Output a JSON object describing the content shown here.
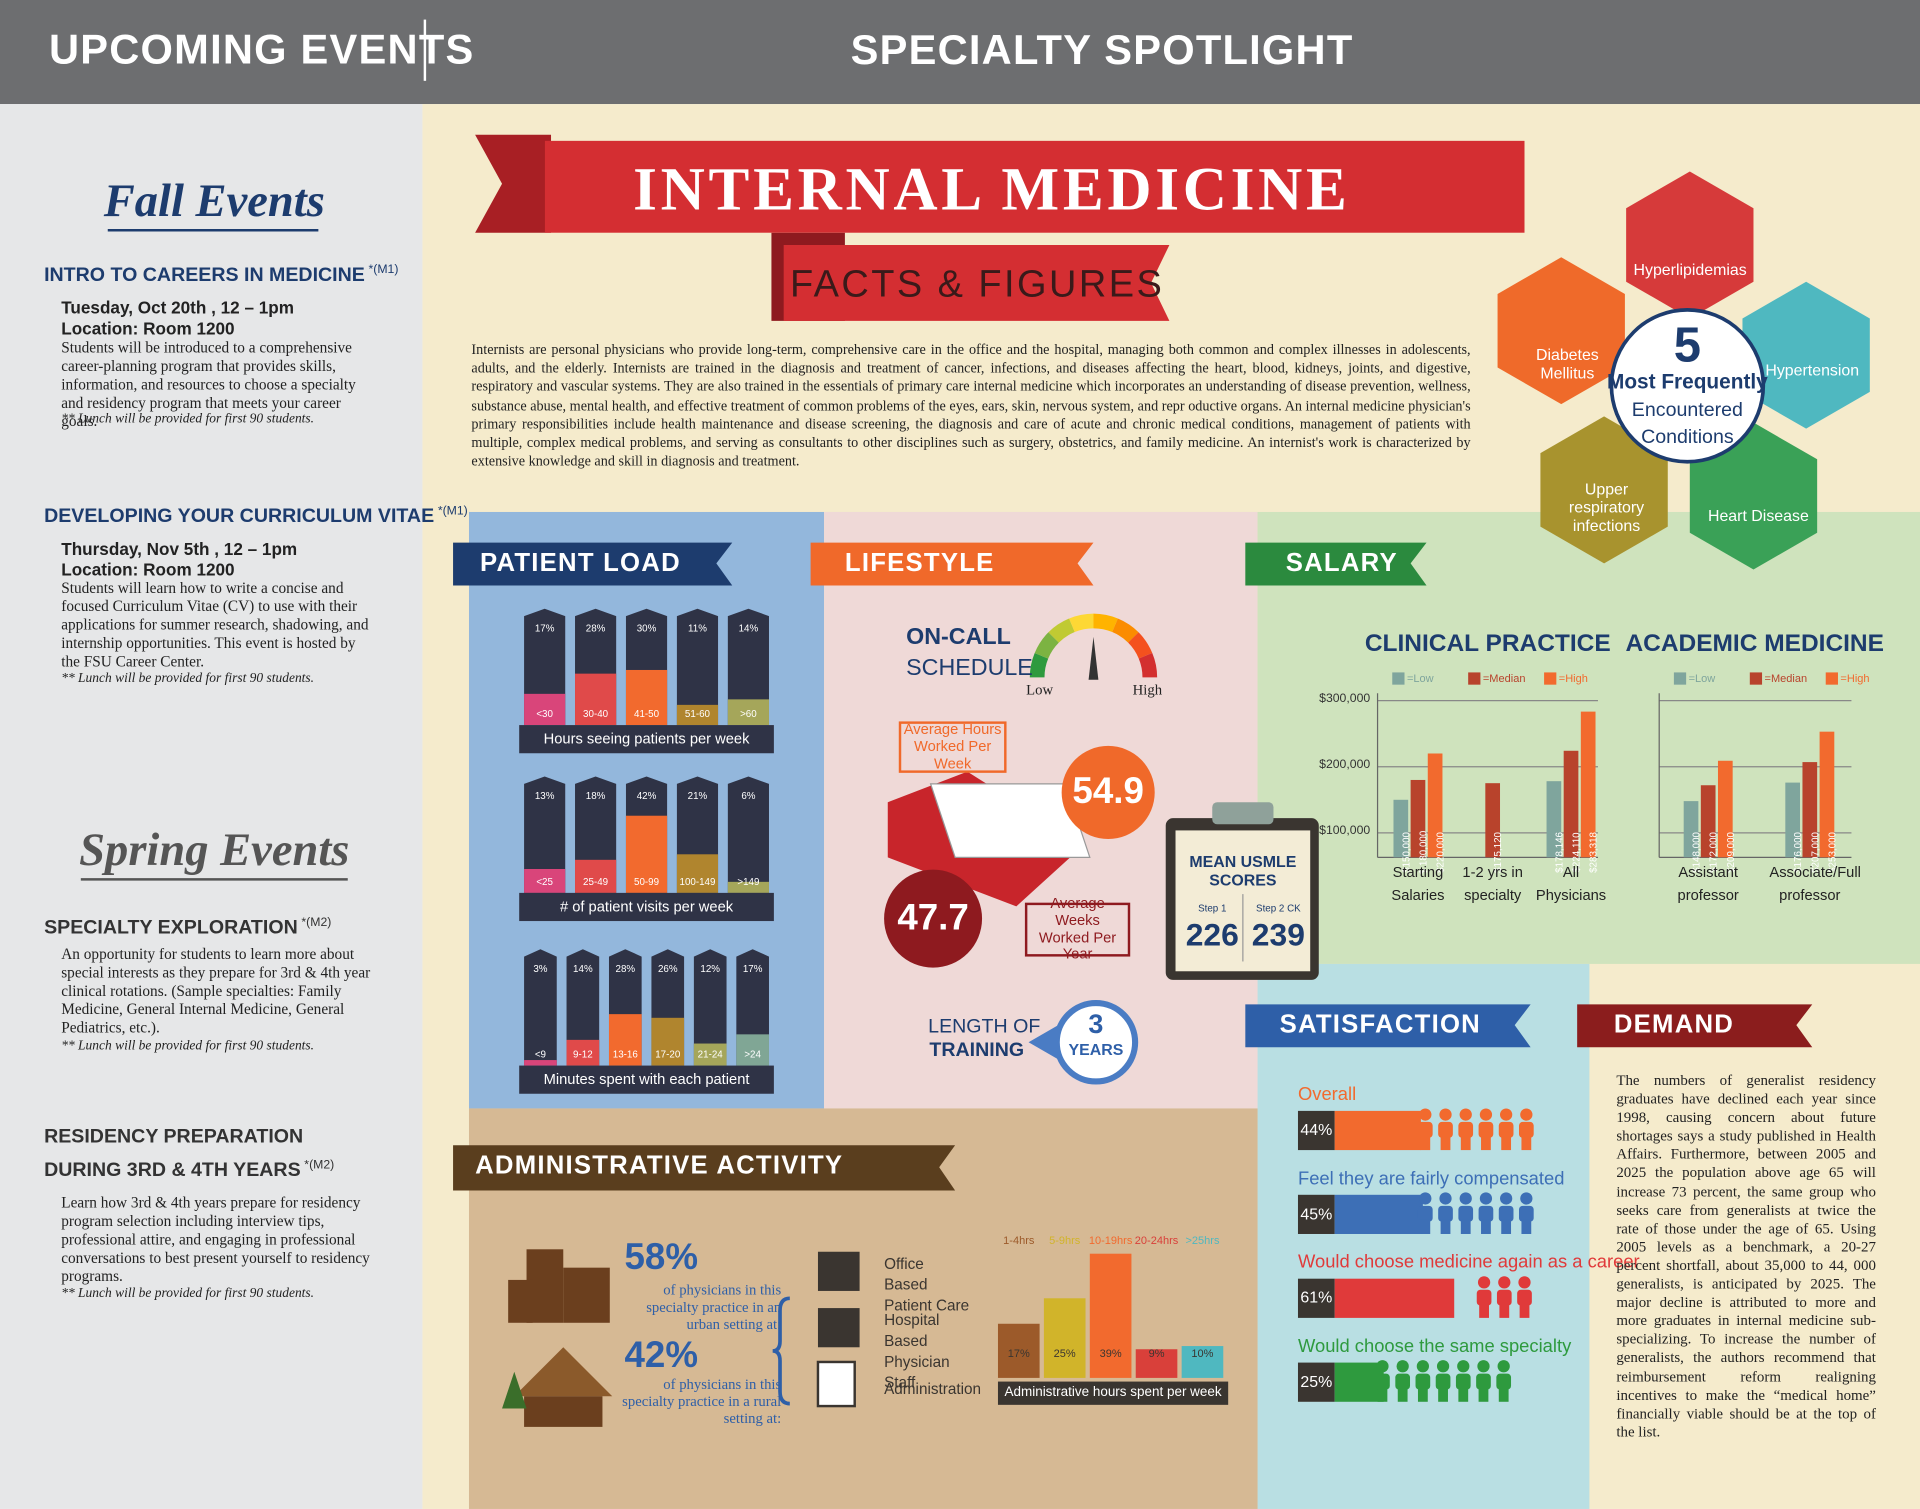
{
  "header": {
    "left": "UPCOMING EVENTS",
    "right": "SPECIALTY SPOTLIGHT"
  },
  "sidebar": {
    "fall_title": "Fall Events",
    "fall_events": [
      {
        "title": "INTRO TO CAREERS IN MEDICINE",
        "tag": "*(M1)",
        "date": "Tuesday, Oct 20th , 12 – 1pm",
        "location": "Location: Room 1200",
        "description": "Students will be introduced to a comprehensive career-planning program that provides skills, information, and resources to choose a specialty and residency program that meets your career goals.",
        "note": "** Lunch will be provided for first 90 students."
      },
      {
        "title": "DEVELOPING YOUR CURRICULUM VITAE",
        "tag": "*(M1)",
        "date": "Thursday, Nov 5th , 12 – 1pm",
        "location": "Location: Room 1200",
        "description": "Students will learn how to write a concise and focused Curriculum Vitae (CV) to use with their applications for summer research, shadowing, and internship opportunities. This event is hosted by the FSU Career Center.",
        "note": "** Lunch will be provided for first 90 students."
      }
    ],
    "spring_title": "Spring Events",
    "spring_events": [
      {
        "title_lines": [
          "SPECIALTY EXPLORATION"
        ],
        "tag": "*(M2)",
        "description": "An opportunity for students to learn more about special interests as they prepare for 3rd & 4th year clinical rotations. (Sample specialties: Family Medicine, General Internal Medicine, General Pediatrics, etc.).",
        "note": "** Lunch will be provided for first 90 students."
      },
      {
        "title_lines": [
          "RESIDENCY PREPARATION",
          "DURING 3RD & 4TH YEARS"
        ],
        "tag": "*(M2)",
        "description": "Learn how 3rd & 4th years prepare for residency program selection including interview tips, professional attire, and engaging in professional conversations to best present yourself to residency programs.",
        "note": "** Lunch will be provided for first 90 students."
      }
    ]
  },
  "main": {
    "banner_title": "INTERNAL MEDICINE",
    "banner_subtitle": "FACTS & FIGURES",
    "intro": "Internists are personal physicians who provide long-term, comprehensive care in the office and the hospital, managing both common and complex illnesses in adolescents, adults, and the elderly. Internists are trained in the diagnosis and treatment of cancer, infections, and diseases affecting the heart, blood, kidneys, joints, and digestive, respiratory and vascular systems. They are also trained in the essentials of primary care internal medicine which incorporates an understanding of disease prevention, wellness, substance abuse, mental health, and effective treatment of common problems of the eyes, ears, skin, nervous system, and repr oductive organs. An internal medicine physician's primary responsibilities include health maintenance and disease screening, the diagnosis and care of acute and chronic medical conditions, management of patients with multiple, complex medical problems, and serving as consultants to other disciplines such as surgery, obstetrics, and family medicine. An internist's work is characterized by extensive knowledge and skill in diagnosis and treatment.",
    "conditions": {
      "count": 5,
      "heading": "Most Frequently",
      "subheading_lines": [
        "Encountered",
        "Conditions"
      ],
      "items": [
        {
          "label": "Hyperlipidemias",
          "color": "#d63a3a"
        },
        {
          "label": "Hypertension",
          "color": "#4fb8c0"
        },
        {
          "label": "Heart Disease",
          "color": "#3aa157"
        },
        {
          "label": "Upper respiratory infections",
          "color": "#a8932e"
        },
        {
          "label": "Diabetes Mellitus",
          "color": "#ef6a2a"
        }
      ]
    },
    "patient_load": {
      "title": "PATIENT LOAD",
      "charts": [
        {
          "caption": "Hours seeing patients per week",
          "categories": [
            "<30",
            "30-40",
            "41-50",
            "51-60",
            ">60"
          ],
          "values": [
            17,
            28,
            30,
            11,
            14
          ],
          "value_labels": [
            "17%",
            "28%",
            "30%",
            "11%",
            "14%"
          ]
        },
        {
          "caption": "# of patient visits per week",
          "categories": [
            "<25",
            "25-49",
            "50-99",
            "100-149",
            ">149"
          ],
          "values": [
            13,
            18,
            42,
            21,
            6
          ],
          "value_labels": [
            "13%",
            "18%",
            "42%",
            "21%",
            "6%"
          ]
        },
        {
          "caption": "Minutes spent with each patient",
          "categories": [
            "<9",
            "9-12",
            "13-16",
            "17-20",
            "21-24",
            ">24"
          ],
          "values": [
            3,
            14,
            28,
            26,
            12,
            17
          ],
          "value_labels": [
            "3%",
            "14%",
            "28%",
            "26%",
            "12%",
            "17%"
          ]
        }
      ]
    },
    "lifestyle": {
      "title": "LIFESTYLE",
      "on_call_lines": [
        "ON-CALL",
        "SCHEDULE"
      ],
      "gauge_low": "Low",
      "gauge_high": "High",
      "hours_label": "Average Hours Worked Per Week",
      "hours_value": 54.9,
      "weeks_label": "Average Weeks Worked Per Year",
      "weeks_value": 47.7,
      "training_lines": [
        "LENGTH OF",
        "TRAINING"
      ],
      "training_value": 3,
      "training_unit": "YEARS"
    },
    "usmle": {
      "title": "MEAN USMLE SCORES",
      "scores": [
        {
          "label": "Step 1",
          "value": 226
        },
        {
          "label": "Step 2 CK",
          "value": 239
        }
      ]
    },
    "salary": {
      "title": "SALARY",
      "legend": [
        {
          "name": "=Low",
          "color": "#7fa59d"
        },
        {
          "name": "=Median",
          "color": "#b8432c"
        },
        {
          "name": "=High",
          "color": "#f26a2e"
        }
      ],
      "yticks": [
        {
          "value": 100000,
          "label": "$100,000"
        },
        {
          "value": 200000,
          "label": "$200,000"
        },
        {
          "value": 300000,
          "label": "$300,000"
        }
      ],
      "panels": [
        {
          "title": "CLINICAL PRACTICE",
          "groups": [
            {
              "label": "Starting Salaries",
              "values": [
                150000,
                180000,
                220000
              ],
              "value_labels": [
                "$150,000",
                "$ 180,000",
                "$220,000"
              ]
            },
            {
              "label": "1-2 yrs in specialty",
              "values": [
                null,
                175120,
                null
              ],
              "value_labels": [
                null,
                "$175,120",
                null
              ]
            },
            {
              "label": "All Physicians",
              "values": [
                178146,
                224110,
                283318
              ],
              "value_labels": [
                "$178,146",
                "$224,110",
                "$283,318"
              ]
            }
          ]
        },
        {
          "title": "ACADEMIC MEDICINE",
          "groups": [
            {
              "label": "Assistant professor",
              "values": [
                148000,
                172000,
                209000
              ],
              "value_labels": [
                "$148,000",
                "$172,000",
                "$209,000"
              ]
            },
            {
              "label": "Associate/Full professor",
              "values": [
                176000,
                207000,
                253000
              ],
              "value_labels": [
                "$176,000",
                "$207,000",
                "$253,000"
              ]
            }
          ]
        }
      ]
    },
    "satisfaction": {
      "title": "SATISFACTION",
      "items": [
        {
          "label": "Overall",
          "value": 44,
          "value_label": "44%",
          "color": "#f26a2e"
        },
        {
          "label": "Feel they are fairly compensated",
          "value": 45,
          "value_label": "45%",
          "color": "#3d6fb6"
        },
        {
          "label": "Would choose medicine again as a career",
          "value": 61,
          "value_label": "61%",
          "color": "#e03a3a"
        },
        {
          "label": "Would choose the same specialty",
          "value": 25,
          "value_label": "25%",
          "color": "#2e9a3e"
        }
      ]
    },
    "demand": {
      "title": "DEMAND",
      "text": "The numbers of generalist residency graduates have declined each year since 1998, causing concern about future shortages says a study published in Health Affairs. Furthermore, between 2005 and 2025 the population above age 65 will increase 73 percent, the same group who seeks care from generalists at twice the rate of those under the age of 65. Using 2005 levels as a benchmark, a 20-27 percent shortfall, about 35,000 to 44, 000 generalists, is anticipated by 2025. The major decline is attributed to more and more graduates in internal medicine sub-specializing. To increase the number of generalists, the authors recommend that reimbursement reform realigning incentives to make the “medical home” financially viable should be at the top of the list."
    },
    "admin": {
      "title": "ADMINISTRATIVE ACTIVITY",
      "urban": {
        "value": 58,
        "value_label": "58%",
        "text": "of physicians in this specialty practice in an urban setting at:"
      },
      "rural": {
        "value": 42,
        "value_label": "42%",
        "text": "of physicians in this specialty practice in a rural setting at:"
      },
      "settings": [
        "Office Based Patient Care",
        "Hospital Based Physician Staff",
        "Administration"
      ],
      "hours": {
        "caption": "Administrative hours spent per week",
        "categories": [
          "1-4hrs",
          "5-9hrs",
          "10-19hrs",
          "20-24hrs",
          ">25hrs"
        ],
        "values": [
          17,
          25,
          39,
          9,
          10
        ],
        "value_labels": [
          "17%",
          "25%",
          "39%",
          "9%",
          "10%"
        ]
      }
    }
  }
}
